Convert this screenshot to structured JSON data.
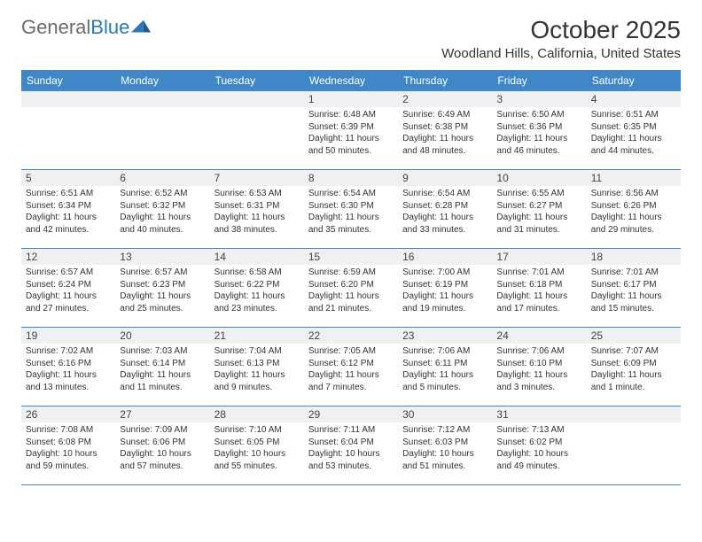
{
  "brand": {
    "text_gray": "General",
    "text_blue": "Blue"
  },
  "title": "October 2025",
  "location": "Woodland Hills, California, United States",
  "weekdays": [
    "Sunday",
    "Monday",
    "Tuesday",
    "Wednesday",
    "Thursday",
    "Friday",
    "Saturday"
  ],
  "colors": {
    "header_bar": "#3f87c6",
    "header_text": "#ffffff",
    "daynum_bg": "#eef0f2",
    "logo_gray": "#6b6b6b",
    "logo_blue": "#2b77b8",
    "rule": "#3f87c6"
  },
  "weeks": [
    [
      {
        "n": "",
        "sr": "",
        "ss": "",
        "dl": ""
      },
      {
        "n": "",
        "sr": "",
        "ss": "",
        "dl": ""
      },
      {
        "n": "",
        "sr": "",
        "ss": "",
        "dl": ""
      },
      {
        "n": "1",
        "sr": "Sunrise: 6:48 AM",
        "ss": "Sunset: 6:39 PM",
        "dl": "Daylight: 11 hours and 50 minutes."
      },
      {
        "n": "2",
        "sr": "Sunrise: 6:49 AM",
        "ss": "Sunset: 6:38 PM",
        "dl": "Daylight: 11 hours and 48 minutes."
      },
      {
        "n": "3",
        "sr": "Sunrise: 6:50 AM",
        "ss": "Sunset: 6:36 PM",
        "dl": "Daylight: 11 hours and 46 minutes."
      },
      {
        "n": "4",
        "sr": "Sunrise: 6:51 AM",
        "ss": "Sunset: 6:35 PM",
        "dl": "Daylight: 11 hours and 44 minutes."
      }
    ],
    [
      {
        "n": "5",
        "sr": "Sunrise: 6:51 AM",
        "ss": "Sunset: 6:34 PM",
        "dl": "Daylight: 11 hours and 42 minutes."
      },
      {
        "n": "6",
        "sr": "Sunrise: 6:52 AM",
        "ss": "Sunset: 6:32 PM",
        "dl": "Daylight: 11 hours and 40 minutes."
      },
      {
        "n": "7",
        "sr": "Sunrise: 6:53 AM",
        "ss": "Sunset: 6:31 PM",
        "dl": "Daylight: 11 hours and 38 minutes."
      },
      {
        "n": "8",
        "sr": "Sunrise: 6:54 AM",
        "ss": "Sunset: 6:30 PM",
        "dl": "Daylight: 11 hours and 35 minutes."
      },
      {
        "n": "9",
        "sr": "Sunrise: 6:54 AM",
        "ss": "Sunset: 6:28 PM",
        "dl": "Daylight: 11 hours and 33 minutes."
      },
      {
        "n": "10",
        "sr": "Sunrise: 6:55 AM",
        "ss": "Sunset: 6:27 PM",
        "dl": "Daylight: 11 hours and 31 minutes."
      },
      {
        "n": "11",
        "sr": "Sunrise: 6:56 AM",
        "ss": "Sunset: 6:26 PM",
        "dl": "Daylight: 11 hours and 29 minutes."
      }
    ],
    [
      {
        "n": "12",
        "sr": "Sunrise: 6:57 AM",
        "ss": "Sunset: 6:24 PM",
        "dl": "Daylight: 11 hours and 27 minutes."
      },
      {
        "n": "13",
        "sr": "Sunrise: 6:57 AM",
        "ss": "Sunset: 6:23 PM",
        "dl": "Daylight: 11 hours and 25 minutes."
      },
      {
        "n": "14",
        "sr": "Sunrise: 6:58 AM",
        "ss": "Sunset: 6:22 PM",
        "dl": "Daylight: 11 hours and 23 minutes."
      },
      {
        "n": "15",
        "sr": "Sunrise: 6:59 AM",
        "ss": "Sunset: 6:20 PM",
        "dl": "Daylight: 11 hours and 21 minutes."
      },
      {
        "n": "16",
        "sr": "Sunrise: 7:00 AM",
        "ss": "Sunset: 6:19 PM",
        "dl": "Daylight: 11 hours and 19 minutes."
      },
      {
        "n": "17",
        "sr": "Sunrise: 7:01 AM",
        "ss": "Sunset: 6:18 PM",
        "dl": "Daylight: 11 hours and 17 minutes."
      },
      {
        "n": "18",
        "sr": "Sunrise: 7:01 AM",
        "ss": "Sunset: 6:17 PM",
        "dl": "Daylight: 11 hours and 15 minutes."
      }
    ],
    [
      {
        "n": "19",
        "sr": "Sunrise: 7:02 AM",
        "ss": "Sunset: 6:16 PM",
        "dl": "Daylight: 11 hours and 13 minutes."
      },
      {
        "n": "20",
        "sr": "Sunrise: 7:03 AM",
        "ss": "Sunset: 6:14 PM",
        "dl": "Daylight: 11 hours and 11 minutes."
      },
      {
        "n": "21",
        "sr": "Sunrise: 7:04 AM",
        "ss": "Sunset: 6:13 PM",
        "dl": "Daylight: 11 hours and 9 minutes."
      },
      {
        "n": "22",
        "sr": "Sunrise: 7:05 AM",
        "ss": "Sunset: 6:12 PM",
        "dl": "Daylight: 11 hours and 7 minutes."
      },
      {
        "n": "23",
        "sr": "Sunrise: 7:06 AM",
        "ss": "Sunset: 6:11 PM",
        "dl": "Daylight: 11 hours and 5 minutes."
      },
      {
        "n": "24",
        "sr": "Sunrise: 7:06 AM",
        "ss": "Sunset: 6:10 PM",
        "dl": "Daylight: 11 hours and 3 minutes."
      },
      {
        "n": "25",
        "sr": "Sunrise: 7:07 AM",
        "ss": "Sunset: 6:09 PM",
        "dl": "Daylight: 11 hours and 1 minute."
      }
    ],
    [
      {
        "n": "26",
        "sr": "Sunrise: 7:08 AM",
        "ss": "Sunset: 6:08 PM",
        "dl": "Daylight: 10 hours and 59 minutes."
      },
      {
        "n": "27",
        "sr": "Sunrise: 7:09 AM",
        "ss": "Sunset: 6:06 PM",
        "dl": "Daylight: 10 hours and 57 minutes."
      },
      {
        "n": "28",
        "sr": "Sunrise: 7:10 AM",
        "ss": "Sunset: 6:05 PM",
        "dl": "Daylight: 10 hours and 55 minutes."
      },
      {
        "n": "29",
        "sr": "Sunrise: 7:11 AM",
        "ss": "Sunset: 6:04 PM",
        "dl": "Daylight: 10 hours and 53 minutes."
      },
      {
        "n": "30",
        "sr": "Sunrise: 7:12 AM",
        "ss": "Sunset: 6:03 PM",
        "dl": "Daylight: 10 hours and 51 minutes."
      },
      {
        "n": "31",
        "sr": "Sunrise: 7:13 AM",
        "ss": "Sunset: 6:02 PM",
        "dl": "Daylight: 10 hours and 49 minutes."
      },
      {
        "n": "",
        "sr": "",
        "ss": "",
        "dl": ""
      }
    ]
  ]
}
